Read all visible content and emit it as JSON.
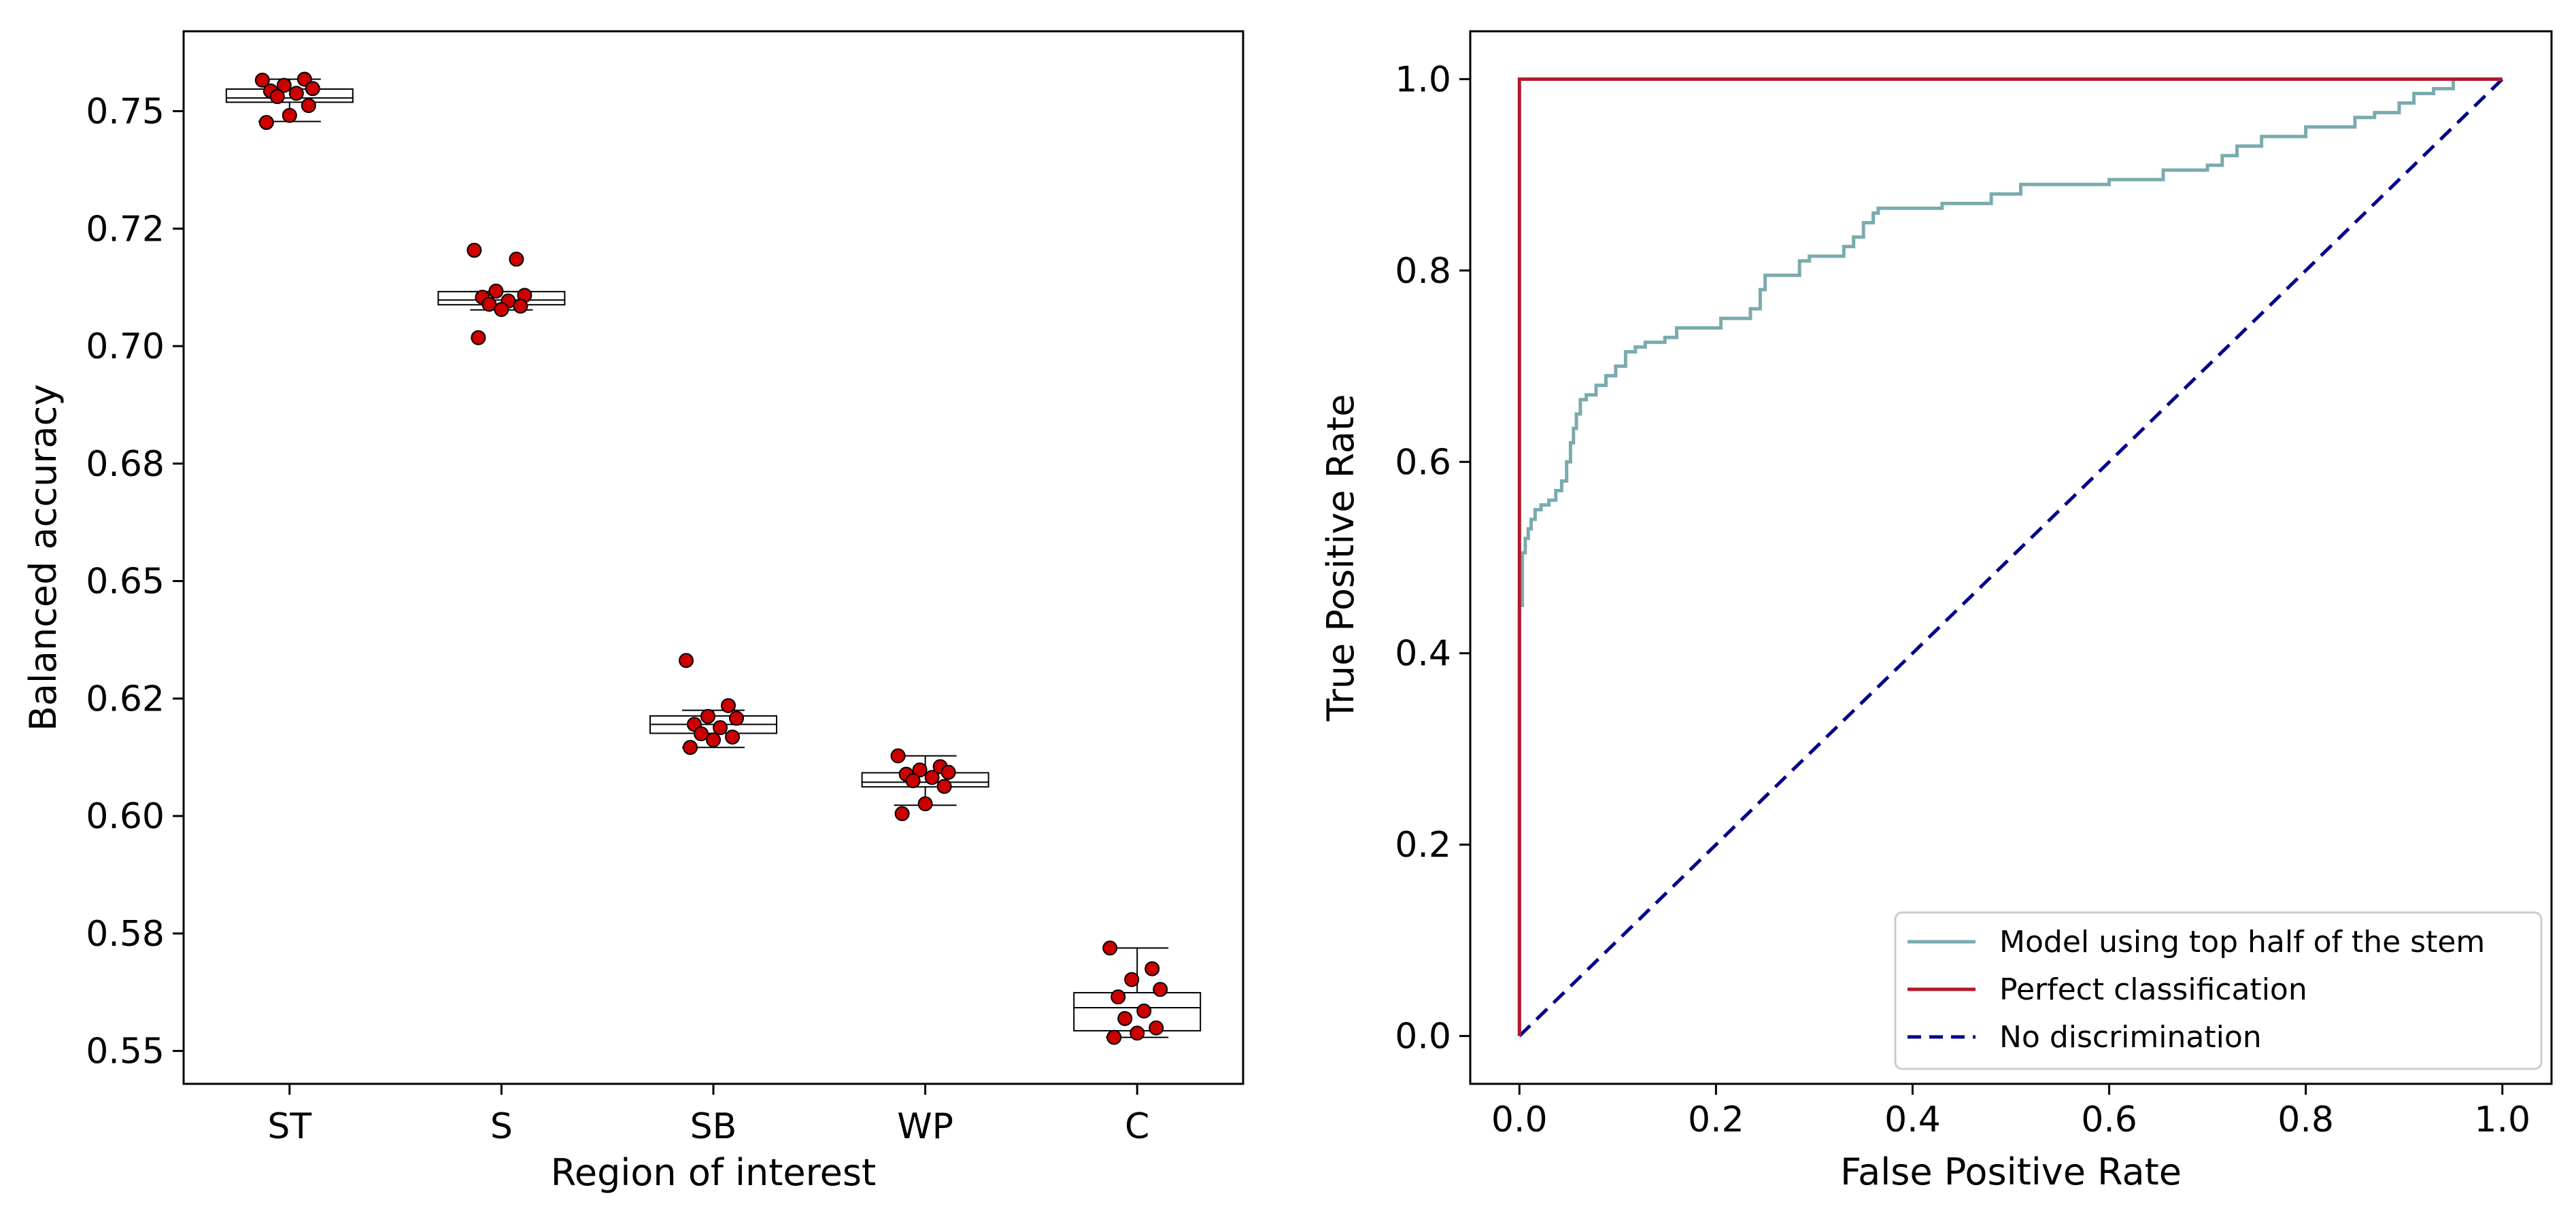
{
  "chart_data": [
    {
      "type": "box",
      "xlabel": "Region of interest",
      "ylabel": "Balanced accuracy",
      "categories": [
        "ST",
        "S",
        "SB",
        "WP",
        "C"
      ],
      "ylim": [
        0.543,
        0.767
      ],
      "yticks": [
        0.55,
        0.575,
        0.6,
        0.625,
        0.65,
        0.675,
        0.7,
        0.725,
        0.75
      ],
      "ytick_labels": [
        "0.55",
        "0.58",
        "0.60",
        "0.62",
        "0.65",
        "0.68",
        "0.70",
        "0.72",
        "0.75"
      ],
      "boxes": [
        {
          "category": "ST",
          "whisker_low": 0.7478,
          "q1": 0.7519,
          "median": 0.7528,
          "q3": 0.7547,
          "whisker_high": 0.7568
        },
        {
          "category": "S",
          "whisker_low": 0.7077,
          "q1": 0.7088,
          "median": 0.7098,
          "q3": 0.7116,
          "whisker_high": 0.7116
        },
        {
          "category": "SB",
          "whisker_low": 0.6146,
          "q1": 0.6176,
          "median": 0.6195,
          "q3": 0.6213,
          "whisker_high": 0.6225
        },
        {
          "category": "WP",
          "whisker_low": 0.6023,
          "q1": 0.6062,
          "median": 0.6072,
          "q3": 0.6092,
          "whisker_high": 0.6128
        },
        {
          "category": "C",
          "whisker_low": 0.5529,
          "q1": 0.5543,
          "median": 0.5592,
          "q3": 0.5624,
          "whisker_high": 0.5719
        }
      ],
      "points": [
        {
          "category": "ST",
          "values": [
            0.7566,
            0.7568,
            0.7555,
            0.7548,
            0.7543,
            0.7538,
            0.7531,
            0.7512,
            0.7491,
            0.7476
          ]
        },
        {
          "category": "S",
          "values": [
            0.7204,
            0.7185,
            0.7117,
            0.7108,
            0.7104,
            0.7096,
            0.7089,
            0.7085,
            0.7078,
            0.7018
          ]
        },
        {
          "category": "SB",
          "values": [
            0.6331,
            0.6235,
            0.6212,
            0.6208,
            0.6195,
            0.6188,
            0.6175,
            0.6168,
            0.6162,
            0.6146
          ]
        },
        {
          "category": "WP",
          "values": [
            0.6128,
            0.6105,
            0.6098,
            0.6093,
            0.6089,
            0.6082,
            0.6075,
            0.6063,
            0.6026,
            0.6005
          ]
        },
        {
          "category": "C",
          "values": [
            0.5719,
            0.5675,
            0.5652,
            0.5631,
            0.5615,
            0.5585,
            0.5569,
            0.5549,
            0.5538,
            0.5529
          ]
        }
      ],
      "box_color": "#000000",
      "point_color": "#cc0000"
    },
    {
      "type": "line",
      "xlabel": "False Positive Rate",
      "ylabel": "True Positive Rate",
      "xlim": [
        -0.05,
        1.05
      ],
      "ylim": [
        -0.05,
        1.05
      ],
      "xticks": [
        0.0,
        0.2,
        0.4,
        0.6,
        0.8,
        1.0
      ],
      "xtick_labels": [
        "0.0",
        "0.2",
        "0.4",
        "0.6",
        "0.8",
        "1.0"
      ],
      "yticks": [
        0.0,
        0.2,
        0.4,
        0.6,
        0.8,
        1.0
      ],
      "ytick_labels": [
        "0.0",
        "0.2",
        "0.4",
        "0.6",
        "0.8",
        "1.0"
      ],
      "legend_position": "bottom-right",
      "series": [
        {
          "name": "Model using top half of the stem",
          "color": "#7aabae",
          "style": "solid",
          "x": [
            0,
            0,
            0.003,
            0.003,
            0.006,
            0.006,
            0.009,
            0.009,
            0.012,
            0.012,
            0.016,
            0.016,
            0.022,
            0.022,
            0.03,
            0.03,
            0.037,
            0.037,
            0.043,
            0.043,
            0.048,
            0.048,
            0.052,
            0.052,
            0.055,
            0.055,
            0.058,
            0.058,
            0.062,
            0.062,
            0.068,
            0.068,
            0.078,
            0.078,
            0.088,
            0.088,
            0.098,
            0.098,
            0.108,
            0.108,
            0.118,
            0.118,
            0.128,
            0.128,
            0.148,
            0.148,
            0.16,
            0.16,
            0.205,
            0.205,
            0.235,
            0.235,
            0.245,
            0.245,
            0.25,
            0.25,
            0.285,
            0.285,
            0.295,
            0.295,
            0.33,
            0.33,
            0.34,
            0.34,
            0.35,
            0.35,
            0.36,
            0.36,
            0.365,
            0.365,
            0.43,
            0.43,
            0.48,
            0.48,
            0.51,
            0.51,
            0.6,
            0.6,
            0.655,
            0.655,
            0.7,
            0.7,
            0.715,
            0.715,
            0.73,
            0.73,
            0.755,
            0.755,
            0.8,
            0.8,
            0.85,
            0.85,
            0.87,
            0.87,
            0.895,
            0.895,
            0.91,
            0.91,
            0.93,
            0.93,
            0.95,
            0.95,
            1.0
          ],
          "y": [
            0,
            0.45,
            0.45,
            0.505,
            0.505,
            0.52,
            0.52,
            0.53,
            0.53,
            0.54,
            0.54,
            0.55,
            0.55,
            0.555,
            0.555,
            0.56,
            0.56,
            0.57,
            0.57,
            0.58,
            0.58,
            0.6,
            0.6,
            0.62,
            0.62,
            0.635,
            0.635,
            0.65,
            0.65,
            0.665,
            0.665,
            0.67,
            0.67,
            0.68,
            0.68,
            0.69,
            0.69,
            0.7,
            0.7,
            0.715,
            0.715,
            0.72,
            0.72,
            0.725,
            0.725,
            0.73,
            0.73,
            0.74,
            0.74,
            0.75,
            0.75,
            0.76,
            0.76,
            0.78,
            0.78,
            0.795,
            0.795,
            0.81,
            0.81,
            0.815,
            0.815,
            0.825,
            0.825,
            0.835,
            0.835,
            0.85,
            0.85,
            0.86,
            0.86,
            0.865,
            0.865,
            0.87,
            0.87,
            0.88,
            0.88,
            0.89,
            0.89,
            0.895,
            0.895,
            0.905,
            0.905,
            0.91,
            0.91,
            0.92,
            0.92,
            0.93,
            0.93,
            0.94,
            0.94,
            0.95,
            0.95,
            0.96,
            0.96,
            0.965,
            0.965,
            0.975,
            0.975,
            0.985,
            0.985,
            0.99,
            0.99,
            1.0,
            1.0
          ]
        },
        {
          "name": "Perfect classification",
          "color": "#b2182b",
          "style": "solid",
          "x": [
            0,
            0,
            1
          ],
          "y": [
            0,
            1,
            1
          ]
        },
        {
          "name": "No discrimination",
          "color": "#00008b",
          "style": "dashed",
          "x": [
            0,
            1
          ],
          "y": [
            0,
            1
          ]
        }
      ]
    }
  ]
}
